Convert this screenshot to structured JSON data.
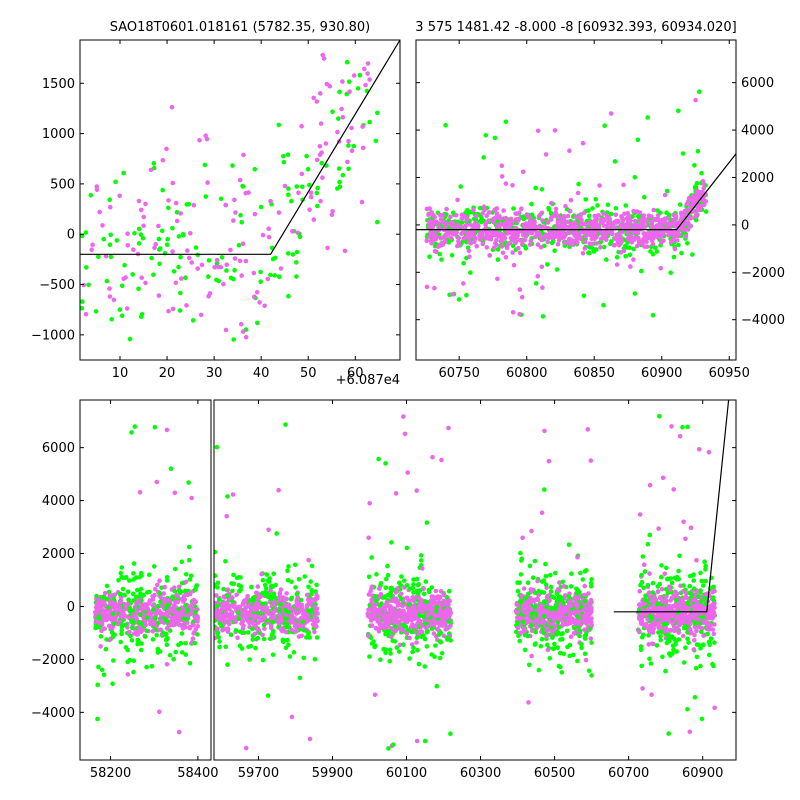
{
  "colors": {
    "green": "#00ff00",
    "magenta": "#ee66ee",
    "line": "#000000"
  },
  "chart_data": [
    {
      "type": "scatter",
      "title": "SAO18T0601.018161 (5782.35, 930.80)",
      "offset_label": "+6.087e4",
      "xlim": [
        1.5,
        69.5
      ],
      "ylim": [
        -1250,
        1930
      ],
      "xticks": [
        10,
        20,
        30,
        40,
        50,
        60
      ],
      "yticks": [
        -1000,
        -500,
        0,
        500,
        1000,
        1500
      ],
      "y_axis_side": "left",
      "model_line": {
        "x": [
          1.5,
          42,
          69.5
        ],
        "y": [
          -200,
          -200,
          1930
        ]
      },
      "series": [
        {
          "color_key": "green",
          "count": 150,
          "x_range": [
            1.5,
            65
          ],
          "spread": 450,
          "outlier_count": 14
        },
        {
          "color_key": "magenta",
          "count": 150,
          "x_range": [
            1.5,
            65
          ],
          "spread": 450,
          "outlier_count": 14
        }
      ]
    },
    {
      "type": "scatter",
      "title": "3 575 1481.42 -8.000 -8 [60932.393, 60934.020]",
      "xlim": [
        60718,
        60955
      ],
      "ylim": [
        -5700,
        7800
      ],
      "xticks": [
        60750,
        60800,
        60850,
        60900,
        60950
      ],
      "yticks": [
        -4000,
        -2000,
        0,
        2000,
        4000,
        6000
      ],
      "y_axis_side": "right",
      "model_line": {
        "x": [
          60718,
          60911,
          60955
        ],
        "y": [
          -200,
          -200,
          3000
        ]
      },
      "series": [
        {
          "color_key": "green",
          "count": 600,
          "x_range": [
            60726,
            60933
          ],
          "spread": 500,
          "outlier_count": 50
        },
        {
          "color_key": "magenta",
          "count": 800,
          "x_range": [
            60726,
            60933
          ],
          "spread": 400,
          "outlier_count": 45
        }
      ]
    },
    {
      "type": "scatter",
      "title": "",
      "ylim": [
        -5800,
        7800
      ],
      "yticks": [
        -4000,
        -2000,
        0,
        2000,
        4000,
        6000
      ],
      "y_axis_side": "left",
      "segments": [
        {
          "xlim": [
            58130,
            58430
          ],
          "xticks": [
            58200,
            58400
          ]
        },
        {
          "xlim": [
            59580,
            60990
          ],
          "xticks": [
            59700,
            59900,
            60100,
            60300,
            60500,
            60700,
            60900
          ]
        }
      ],
      "clusters": [
        {
          "x_range": [
            58165,
            58400
          ],
          "count": 700
        },
        {
          "x_range": [
            59580,
            59860
          ],
          "count": 700
        },
        {
          "x_range": [
            59995,
            60220
          ],
          "count": 700
        },
        {
          "x_range": [
            60395,
            60600
          ],
          "count": 700
        },
        {
          "x_range": [
            60726,
            60933
          ],
          "count": 700
        }
      ],
      "model_line": {
        "x": [
          60660,
          60911,
          60970
        ],
        "y": [
          -200,
          -200,
          7800
        ]
      }
    }
  ]
}
